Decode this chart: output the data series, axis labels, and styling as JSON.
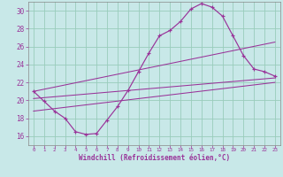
{
  "bg_color": "#c8e8e8",
  "grid_color": "#99ccbb",
  "line_color": "#993399",
  "xlabel": "Windchill (Refroidissement éolien,°C)",
  "xmin": -0.5,
  "xmax": 23.5,
  "ymin": 15.0,
  "ymax": 31.0,
  "yticks": [
    16,
    18,
    20,
    22,
    24,
    26,
    28,
    30
  ],
  "xticks": [
    0,
    1,
    2,
    3,
    4,
    5,
    6,
    7,
    8,
    9,
    10,
    11,
    12,
    13,
    14,
    15,
    16,
    17,
    18,
    19,
    20,
    21,
    22,
    23
  ],
  "main_x": [
    0,
    1,
    2,
    3,
    4,
    5,
    6,
    7,
    8,
    9,
    10,
    11,
    12,
    13,
    14,
    15,
    16,
    17,
    18,
    19,
    20,
    21,
    22,
    23
  ],
  "main_y": [
    21.0,
    19.9,
    18.8,
    18.0,
    16.5,
    16.2,
    16.3,
    17.8,
    19.3,
    21.1,
    23.2,
    25.3,
    27.2,
    27.8,
    28.8,
    30.2,
    30.8,
    30.4,
    29.4,
    27.2,
    25.0,
    23.5,
    23.2,
    22.7
  ],
  "ref_lines": [
    {
      "x": [
        0,
        23
      ],
      "y": [
        21.0,
        26.5
      ]
    },
    {
      "x": [
        0,
        23
      ],
      "y": [
        20.2,
        22.5
      ]
    },
    {
      "x": [
        0,
        23
      ],
      "y": [
        18.8,
        22.0
      ]
    }
  ],
  "spine_color": "#888888",
  "tick_color": "#993399",
  "xlabel_color": "#993399",
  "xlabel_fontsize": 5.5,
  "ytick_fontsize": 5.5,
  "xtick_fontsize": 4.2
}
